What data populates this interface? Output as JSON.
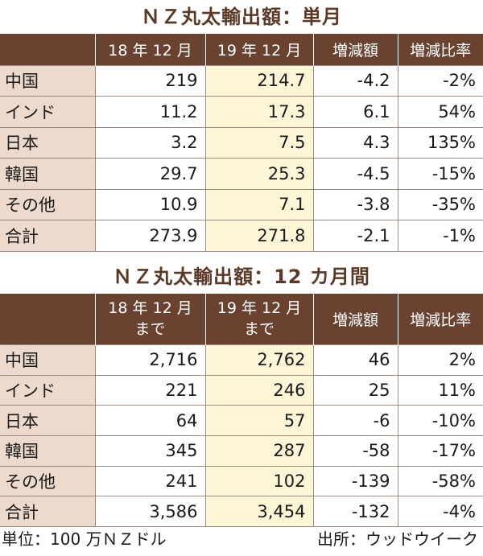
{
  "table1": {
    "title": "ＮＺ丸太輸出額：単月",
    "headers": [
      "",
      "18 年 12 月",
      "19 年 12 月",
      "増減額",
      "増減比率"
    ],
    "rows": [
      [
        "中国",
        "219",
        "214.7",
        "-4.2",
        "-2%"
      ],
      [
        "インド",
        "11.2",
        "17.3",
        "6.1",
        "54%"
      ],
      [
        "日本",
        "3.2",
        "7.5",
        "4.3",
        "135%"
      ],
      [
        "韓国",
        "29.7",
        "25.3",
        "-4.5",
        "-15%"
      ],
      [
        "その他",
        "10.9",
        "7.1",
        "-3.8",
        "-35%"
      ],
      [
        "合計",
        "273.9",
        "271.8",
        "-2.1",
        "-1%"
      ]
    ]
  },
  "table2": {
    "title": "ＮＺ丸太輸出額：12 カ月間",
    "headers": [
      "",
      "18 年 12 月",
      "19 年 12 月",
      "増減額",
      "増減比率"
    ],
    "header_sub": "まで",
    "rows": [
      [
        "中国",
        "2,716",
        "2,762",
        "46",
        "2%"
      ],
      [
        "インド",
        "221",
        "246",
        "25",
        "11%"
      ],
      [
        "日本",
        "64",
        "57",
        "-6",
        "-10%"
      ],
      [
        "韓国",
        "345",
        "287",
        "-58",
        "-17%"
      ],
      [
        "その他",
        "241",
        "102",
        "-139",
        "-58%"
      ],
      [
        "合計",
        "3,586",
        "3,454",
        "-132",
        "-4%"
      ]
    ]
  },
  "footer": {
    "unit": "単位：100 万ＮＺドル",
    "source": "出所：ウッドウイーク"
  }
}
